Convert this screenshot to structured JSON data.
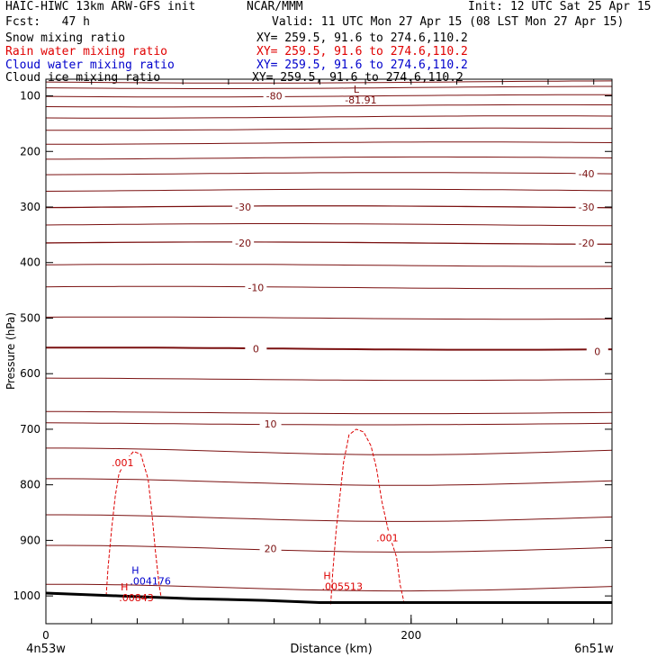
{
  "header": {
    "model": "HAIC-HIWC 13km ARW-GFS init",
    "org": "NCAR/MMM",
    "init": "Init: 12 UTC Sat 25 Apr 15",
    "fcst": "Fcst:   47 h",
    "valid": "Valid: 11 UTC Mon 27 Apr 15 (08 LST Mon 27 Apr 15)"
  },
  "fields": [
    {
      "name": "Snow mixing ratio",
      "xy": "XY= 259.5, 91.6 to 274.6,110.2",
      "color": "#000000"
    },
    {
      "name": "Rain water mixing ratio",
      "xy": "XY= 259.5, 91.6 to 274.6,110.2",
      "color": "#e00000"
    },
    {
      "name": "Cloud water mixing ratio",
      "xy": "XY= 259.5, 91.6 to 274.6,110.2",
      "color": "#0000cc"
    },
    {
      "name": "Cloud ice mixing ratio",
      "xy": "XY= 259.5, 91.6 to 274.6,110.2",
      "color": "#000000"
    }
  ],
  "colors": {
    "temperature": "#7a1010",
    "rain": "#dd0000",
    "cloud_water": "#0000cc",
    "ground": "#000000",
    "frame": "#000000"
  },
  "chart_data": {
    "type": "line",
    "title": "",
    "xlabel": "Distance (km)",
    "ylabel": "Pressure (hPa)",
    "xlim": [
      0,
      310
    ],
    "ylim": [
      1050,
      70
    ],
    "x_ticks": [
      {
        "value": 0,
        "label": "0"
      },
      {
        "value": 200,
        "label": "200"
      }
    ],
    "x_minor_step": 25,
    "y_ticks": [
      {
        "value": 100,
        "label": "100"
      },
      {
        "value": 200,
        "label": "200"
      },
      {
        "value": 300,
        "label": "300"
      },
      {
        "value": 400,
        "label": "400"
      },
      {
        "value": 500,
        "label": "500"
      },
      {
        "value": 600,
        "label": "600"
      },
      {
        "value": 700,
        "label": "700"
      },
      {
        "value": 800,
        "label": "800"
      },
      {
        "value": 900,
        "label": "900"
      },
      {
        "value": 1000,
        "label": "1000"
      }
    ],
    "endpoint_left": "4n53w",
    "endpoint_right": "6n51w",
    "isotherms": [
      {
        "p": 75,
        "label": null
      },
      {
        "p": 85,
        "label": null
      },
      {
        "p": 100,
        "label": "-80",
        "label_x": 125
      },
      {
        "p": 118,
        "label": null
      },
      {
        "p": 138,
        "label": null
      },
      {
        "p": 160,
        "label": null
      },
      {
        "p": 185,
        "label": null
      },
      {
        "p": 212,
        "label": null
      },
      {
        "p": 240,
        "label": "-40",
        "label_x": 296
      },
      {
        "p": 270,
        "label": null
      },
      {
        "p": 300,
        "label": "-30",
        "label_x": 108
      },
      {
        "p": 300,
        "label": "-30",
        "label_x": 296
      },
      {
        "p": 332,
        "label": null
      },
      {
        "p": 365,
        "label": "-20",
        "label_x": 108
      },
      {
        "p": 365,
        "label": "-20",
        "label_x": 296
      },
      {
        "p": 405,
        "label": null
      },
      {
        "p": 445,
        "label": "-10",
        "label_x": 115
      },
      {
        "p": 500,
        "label": null
      },
      {
        "p": 555,
        "label": "0",
        "label_x": 115,
        "bold": true
      },
      {
        "p": 560,
        "label": "0",
        "label_x": 302,
        "bold": true,
        "skip_line": true
      },
      {
        "p": 610,
        "label": null
      },
      {
        "p": 670,
        "label": null
      },
      {
        "p": 690,
        "label": "10",
        "label_x": 123
      },
      {
        "p": 740,
        "label": null
      },
      {
        "p": 795,
        "label": null
      },
      {
        "p": 860,
        "label": null
      },
      {
        "p": 915,
        "label": "20",
        "label_x": 123
      },
      {
        "p": 985,
        "label": null
      }
    ],
    "min_label": {
      "symbol": "L",
      "value": "-81.91",
      "x": 170,
      "p": 88
    },
    "rain_contours": [
      {
        "label": ".001",
        "label_x": 42,
        "label_p": 760,
        "points": [
          [
            33,
            1000
          ],
          [
            34,
            950
          ],
          [
            36,
            880
          ],
          [
            38,
            820
          ],
          [
            40,
            780
          ],
          [
            44,
            755
          ],
          [
            48,
            740
          ],
          [
            52,
            745
          ],
          [
            56,
            790
          ],
          [
            58,
            850
          ],
          [
            60,
            920
          ],
          [
            62,
            980
          ],
          [
            63,
            1000
          ]
        ]
      },
      {
        "label": ".001",
        "label_x": 187,
        "label_p": 895,
        "points": [
          [
            156,
            1015
          ],
          [
            157,
            960
          ],
          [
            159,
            880
          ],
          [
            161,
            820
          ],
          [
            163,
            760
          ],
          [
            166,
            710
          ],
          [
            170,
            700
          ],
          [
            174,
            705
          ],
          [
            178,
            730
          ],
          [
            181,
            770
          ],
          [
            184,
            830
          ],
          [
            188,
            890
          ],
          [
            192,
            930
          ],
          [
            194,
            980
          ],
          [
            196,
            1010
          ]
        ]
      }
    ],
    "maxima": [
      {
        "symbol": "H",
        "value": ".00843",
        "x": 43,
        "p": 990,
        "color": "rain"
      },
      {
        "symbol": "H",
        "value": ".004176",
        "x": 49,
        "p": 960,
        "color": "cloud_water"
      },
      {
        "symbol": "H",
        "value": ".005513",
        "x": 154,
        "p": 970,
        "color": "rain"
      }
    ],
    "ground_pressure": [
      [
        0,
        995
      ],
      [
        40,
        1000
      ],
      [
        80,
        1005
      ],
      [
        120,
        1008
      ],
      [
        150,
        1012
      ],
      [
        200,
        1012
      ],
      [
        250,
        1012
      ],
      [
        310,
        1012
      ]
    ]
  }
}
